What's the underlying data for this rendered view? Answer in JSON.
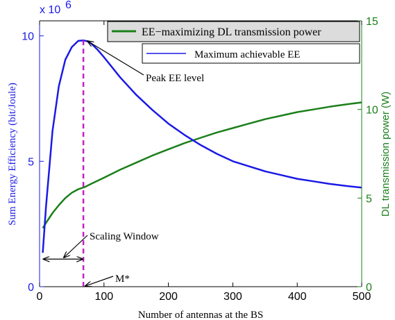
{
  "chart_data": {
    "type": "line",
    "xlabel": "Number of antennas at the BS",
    "ylabel_left": "Sum Energy Efficiency (bit/Joule)",
    "ylabel_right": "DL transmission power (W)",
    "y_exponent_label": "x 10",
    "y_exponent_power": "6",
    "xlim": [
      0,
      500
    ],
    "ylim_left": [
      0,
      10.6
    ],
    "ylim_right": [
      0,
      15
    ],
    "x_ticks": [
      0,
      100,
      200,
      300,
      400,
      500
    ],
    "y_left_ticks": [
      0,
      5,
      10
    ],
    "y_right_ticks": [
      0,
      5,
      10,
      15
    ],
    "legend_placement": "top-right",
    "series": [
      {
        "name": "EE−maximizing DL transmission power",
        "axis": "right",
        "color": "#1a7f1a",
        "x": [
          5,
          10,
          20,
          30,
          40,
          50,
          60,
          70,
          80,
          100,
          125,
          150,
          175,
          200,
          225,
          250,
          275,
          300,
          325,
          350,
          375,
          400,
          425,
          450,
          475,
          500
        ],
        "y": [
          3.3,
          3.6,
          4.15,
          4.6,
          5.0,
          5.3,
          5.5,
          5.62,
          5.8,
          6.15,
          6.6,
          7.0,
          7.4,
          7.75,
          8.1,
          8.4,
          8.7,
          8.95,
          9.2,
          9.45,
          9.65,
          9.85,
          10.0,
          10.15,
          10.28,
          10.4
        ]
      },
      {
        "name": "Maximum achievable EE",
        "axis": "left",
        "color": "#1a1ae6",
        "x": [
          5,
          10,
          20,
          30,
          40,
          50,
          60,
          68,
          75,
          80,
          90,
          100,
          125,
          150,
          175,
          200,
          225,
          250,
          275,
          300,
          325,
          350,
          375,
          400,
          425,
          450,
          475,
          500
        ],
        "y": [
          1.35,
          3.2,
          6.2,
          8.0,
          9.05,
          9.55,
          9.8,
          9.82,
          9.78,
          9.7,
          9.45,
          9.15,
          8.35,
          7.65,
          7.05,
          6.5,
          6.05,
          5.65,
          5.3,
          5.0,
          4.8,
          4.6,
          4.45,
          4.3,
          4.2,
          4.1,
          4.02,
          3.95
        ]
      }
    ],
    "annotations": {
      "peak_label": "Peak EE level",
      "window_label": "Scaling Window",
      "mstar_label": "M*",
      "mstar_x": 68,
      "window_x_range": [
        5,
        68
      ],
      "window_y": 1.1,
      "peak_x": 68,
      "peak_y": 9.82
    }
  }
}
